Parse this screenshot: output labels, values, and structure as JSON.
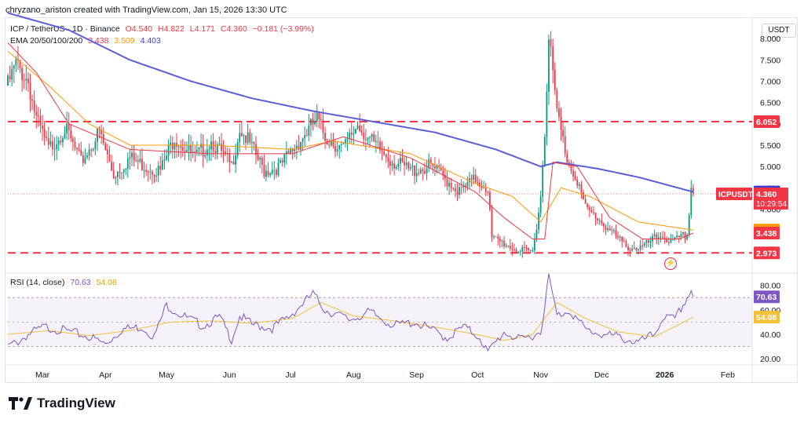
{
  "header": {
    "created_by": "chryzano_ariston created with TradingView.com, Jan 15, 2026 13:30 UTC"
  },
  "legend": {
    "symbol": "ICP / TetherUS · 1D · Binance",
    "o": "O4.540",
    "h": "H4.822",
    "l": "L4.171",
    "c": "C4.360",
    "chg": "−0.181 (−3.99%)",
    "ema_label": "EMA 20/50/100/200",
    "ema_vals": [
      "3.438",
      "3.509",
      "4.403"
    ],
    "rsi_label": "RSI (14, close)",
    "rsi_vals": [
      "70.63",
      "54.08"
    ]
  },
  "currency": "USDT",
  "brand": "TradingView",
  "colors": {
    "up": "#089981",
    "down": "#f23645",
    "ema20": "#f23645",
    "ema50": "#ff9800",
    "ema200": "#5b5fd6",
    "rsi": "#7e57c2",
    "rsi_ma": "#f5c13a"
  },
  "chart_data": {
    "type": "candlestick",
    "symbol": "ICPUSDT",
    "timeframe": "1D",
    "y_ticks": [
      "8.000",
      "7.500",
      "7.000",
      "6.500",
      "6.000",
      "5.500",
      "5.000",
      "4.500",
      "4.000"
    ],
    "ylim": [
      2.5,
      8.5
    ],
    "x_ticks": [
      "Mar",
      "Apr",
      "May",
      "Jun",
      "Jul",
      "Aug",
      "Sep",
      "Oct",
      "Nov",
      "Dec",
      "2026",
      "Feb"
    ],
    "x_tick_days": [
      17,
      48,
      78,
      109,
      139,
      170,
      201,
      231,
      262,
      292,
      323,
      354
    ],
    "last_day": 337,
    "price_anchors": [
      [
        0,
        6.9
      ],
      [
        4,
        7.4
      ],
      [
        10,
        7.0
      ],
      [
        14,
        6.1
      ],
      [
        20,
        5.4
      ],
      [
        28,
        5.9
      ],
      [
        36,
        5.1
      ],
      [
        45,
        5.8
      ],
      [
        52,
        4.8
      ],
      [
        60,
        5.2
      ],
      [
        68,
        5.0
      ],
      [
        75,
        4.9
      ],
      [
        82,
        5.7
      ],
      [
        92,
        5.2
      ],
      [
        100,
        5.6
      ],
      [
        110,
        5.0
      ],
      [
        114,
        5.9
      ],
      [
        118,
        5.6
      ],
      [
        126,
        4.9
      ],
      [
        134,
        5.0
      ],
      [
        140,
        5.4
      ],
      [
        152,
        6.1
      ],
      [
        156,
        5.7
      ],
      [
        165,
        5.4
      ],
      [
        172,
        6.0
      ],
      [
        180,
        5.5
      ],
      [
        190,
        5.1
      ],
      [
        198,
        4.9
      ],
      [
        208,
        5.0
      ],
      [
        218,
        4.6
      ],
      [
        222,
        4.4
      ],
      [
        230,
        4.7
      ],
      [
        236,
        4.5
      ],
      [
        238,
        3.3
      ],
      [
        244,
        3.2
      ],
      [
        252,
        3.0
      ],
      [
        258,
        3.0
      ],
      [
        262,
        4.3
      ],
      [
        264,
        5.8
      ],
      [
        266,
        8.2
      ],
      [
        268,
        7.1
      ],
      [
        270,
        6.3
      ],
      [
        272,
        5.8
      ],
      [
        275,
        5.2
      ],
      [
        280,
        4.7
      ],
      [
        284,
        4.0
      ],
      [
        290,
        3.8
      ],
      [
        296,
        3.5
      ],
      [
        302,
        3.2
      ],
      [
        306,
        3.1
      ],
      [
        312,
        3.1
      ],
      [
        318,
        3.3
      ],
      [
        322,
        3.4
      ],
      [
        326,
        3.2
      ],
      [
        330,
        3.3
      ],
      [
        334,
        3.4
      ],
      [
        336,
        4.5
      ],
      [
        337,
        4.36
      ]
    ],
    "ema20_anchors": [
      [
        0,
        7.9
      ],
      [
        14,
        7.2
      ],
      [
        30,
        6.0
      ],
      [
        60,
        5.4
      ],
      [
        100,
        5.3
      ],
      [
        140,
        5.3
      ],
      [
        165,
        5.7
      ],
      [
        198,
        5.2
      ],
      [
        230,
        4.4
      ],
      [
        244,
        3.8
      ],
      [
        258,
        3.3
      ],
      [
        264,
        3.3
      ],
      [
        268,
        5.1
      ],
      [
        280,
        5.0
      ],
      [
        296,
        3.8
      ],
      [
        312,
        3.3
      ],
      [
        330,
        3.3
      ],
      [
        337,
        3.438
      ]
    ],
    "ema50_anchors": [
      [
        0,
        7.7
      ],
      [
        20,
        6.9
      ],
      [
        40,
        6.0
      ],
      [
        60,
        5.5
      ],
      [
        100,
        5.5
      ],
      [
        140,
        5.4
      ],
      [
        160,
        5.6
      ],
      [
        198,
        5.3
      ],
      [
        230,
        4.6
      ],
      [
        248,
        4.3
      ],
      [
        262,
        3.7
      ],
      [
        272,
        4.5
      ],
      [
        286,
        4.3
      ],
      [
        310,
        3.7
      ],
      [
        337,
        3.509
      ]
    ],
    "ema200_anchors": [
      [
        0,
        8.6
      ],
      [
        30,
        8.2
      ],
      [
        60,
        7.5
      ],
      [
        90,
        7.0
      ],
      [
        120,
        6.6
      ],
      [
        150,
        6.3
      ],
      [
        180,
        6.05
      ],
      [
        210,
        5.8
      ],
      [
        240,
        5.4
      ],
      [
        262,
        5.0
      ],
      [
        270,
        5.1
      ],
      [
        290,
        4.95
      ],
      [
        310,
        4.75
      ],
      [
        337,
        4.403
      ]
    ],
    "levels": [
      {
        "value": 6.052,
        "label": "6.052"
      },
      {
        "value": 2.973,
        "label": "2.973"
      }
    ],
    "price_labels": [
      {
        "value": 4.403,
        "label": "4.403",
        "color": "#3c3cdc"
      },
      {
        "value": 3.509,
        "label": "3.509",
        "color": "#ff9800"
      },
      {
        "value": 3.438,
        "label": "3.438",
        "color": "#f23645"
      }
    ],
    "last_price": {
      "symbol": "ICPUSDT",
      "value": 4.36,
      "label": "4.360",
      "countdown": "10:29:54",
      "color": "#f23645"
    },
    "rsi": {
      "y_ticks": [
        "80.00",
        "60.00",
        "40.00",
        "20.00"
      ],
      "ylim": [
        15,
        90
      ],
      "band": [
        30,
        70
      ],
      "last": "70.63",
      "ma_last": "54.08",
      "rsi_anchors": [
        [
          0,
          30
        ],
        [
          5,
          34
        ],
        [
          10,
          40
        ],
        [
          18,
          46
        ],
        [
          28,
          43
        ],
        [
          40,
          38
        ],
        [
          48,
          32
        ],
        [
          56,
          44
        ],
        [
          66,
          46
        ],
        [
          72,
          38
        ],
        [
          78,
          64
        ],
        [
          86,
          55
        ],
        [
          96,
          47
        ],
        [
          104,
          54
        ],
        [
          110,
          36
        ],
        [
          114,
          55
        ],
        [
          120,
          48
        ],
        [
          130,
          45
        ],
        [
          138,
          54
        ],
        [
          150,
          73
        ],
        [
          156,
          60
        ],
        [
          168,
          52
        ],
        [
          178,
          58
        ],
        [
          190,
          47
        ],
        [
          200,
          50
        ],
        [
          208,
          44
        ],
        [
          216,
          37
        ],
        [
          224,
          46
        ],
        [
          232,
          38
        ],
        [
          236,
          25
        ],
        [
          244,
          42
        ],
        [
          252,
          35
        ],
        [
          262,
          42
        ],
        [
          266,
          87
        ],
        [
          270,
          55
        ],
        [
          276,
          60
        ],
        [
          284,
          44
        ],
        [
          292,
          40
        ],
        [
          300,
          38
        ],
        [
          310,
          33
        ],
        [
          318,
          40
        ],
        [
          322,
          54
        ],
        [
          328,
          52
        ],
        [
          336,
          76
        ],
        [
          337,
          70.63
        ]
      ],
      "ma_anchors": [
        [
          0,
          40
        ],
        [
          20,
          43
        ],
        [
          40,
          39
        ],
        [
          60,
          43
        ],
        [
          80,
          50
        ],
        [
          100,
          51
        ],
        [
          120,
          49
        ],
        [
          140,
          53
        ],
        [
          154,
          66
        ],
        [
          170,
          55
        ],
        [
          190,
          51
        ],
        [
          210,
          46
        ],
        [
          230,
          40
        ],
        [
          244,
          35
        ],
        [
          258,
          40
        ],
        [
          270,
          66
        ],
        [
          284,
          53
        ],
        [
          300,
          42
        ],
        [
          318,
          38
        ],
        [
          330,
          48
        ],
        [
          337,
          54.08
        ]
      ]
    }
  }
}
